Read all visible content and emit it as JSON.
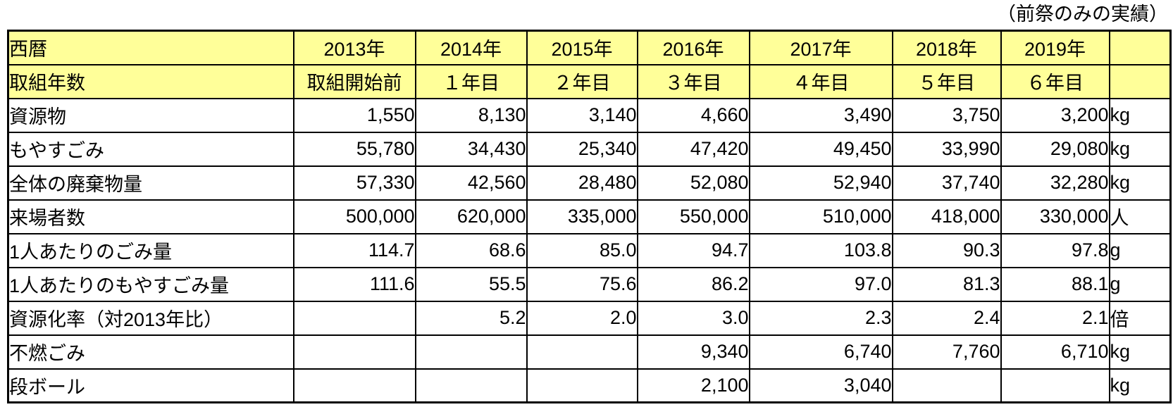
{
  "caption": "（前祭のみの実績）",
  "colors": {
    "header_bg": "#FFFF99",
    "border": "#000000",
    "text": "#000000",
    "page_bg": "#FFFFFF"
  },
  "table": {
    "header_rows": [
      {
        "label": "西暦",
        "cells": [
          "2013年",
          "2014年",
          "2015年",
          "2016年",
          "2017年",
          "2018年",
          "2019年"
        ],
        "unit": ""
      },
      {
        "label": "取組年数",
        "cells": [
          "取組開始前",
          "１年目",
          "２年目",
          "３年目",
          "４年目",
          "５年目",
          "６年目"
        ],
        "unit": ""
      }
    ],
    "rows": [
      {
        "label": "資源物",
        "values": [
          "1,550",
          "8,130",
          "3,140",
          "4,660",
          "3,490",
          "3,750",
          "3,200"
        ],
        "unit": "kg"
      },
      {
        "label": "もやすごみ",
        "values": [
          "55,780",
          "34,430",
          "25,340",
          "47,420",
          "49,450",
          "33,990",
          "29,080"
        ],
        "unit": "kg"
      },
      {
        "label": "全体の廃棄物量",
        "values": [
          "57,330",
          "42,560",
          "28,480",
          "52,080",
          "52,940",
          "37,740",
          "32,280"
        ],
        "unit": "kg"
      },
      {
        "label": "来場者数",
        "values": [
          "500,000",
          "620,000",
          "335,000",
          "550,000",
          "510,000",
          "418,000",
          "330,000"
        ],
        "unit": "人"
      },
      {
        "label": "1人あたりのごみ量",
        "values": [
          "114.7",
          "68.6",
          "85.0",
          "94.7",
          "103.8",
          "90.3",
          "97.8"
        ],
        "unit": "g"
      },
      {
        "label": "1人あたりのもやすごみ量",
        "values": [
          "111.6",
          "55.5",
          "75.6",
          "86.2",
          "97.0",
          "81.3",
          "88.1"
        ],
        "unit": "g"
      },
      {
        "label": "資源化率（対2013年比）",
        "values": [
          "",
          "5.2",
          "2.0",
          "3.0",
          "2.3",
          "2.4",
          "2.1"
        ],
        "unit": "倍"
      },
      {
        "label": "不燃ごみ",
        "values": [
          "",
          "",
          "",
          "9,340",
          "6,740",
          "7,760",
          "6,710"
        ],
        "unit": "kg"
      },
      {
        "label": "段ボール",
        "values": [
          "",
          "",
          "",
          "2,100",
          "3,040",
          "",
          ""
        ],
        "unit": "kg"
      }
    ]
  }
}
